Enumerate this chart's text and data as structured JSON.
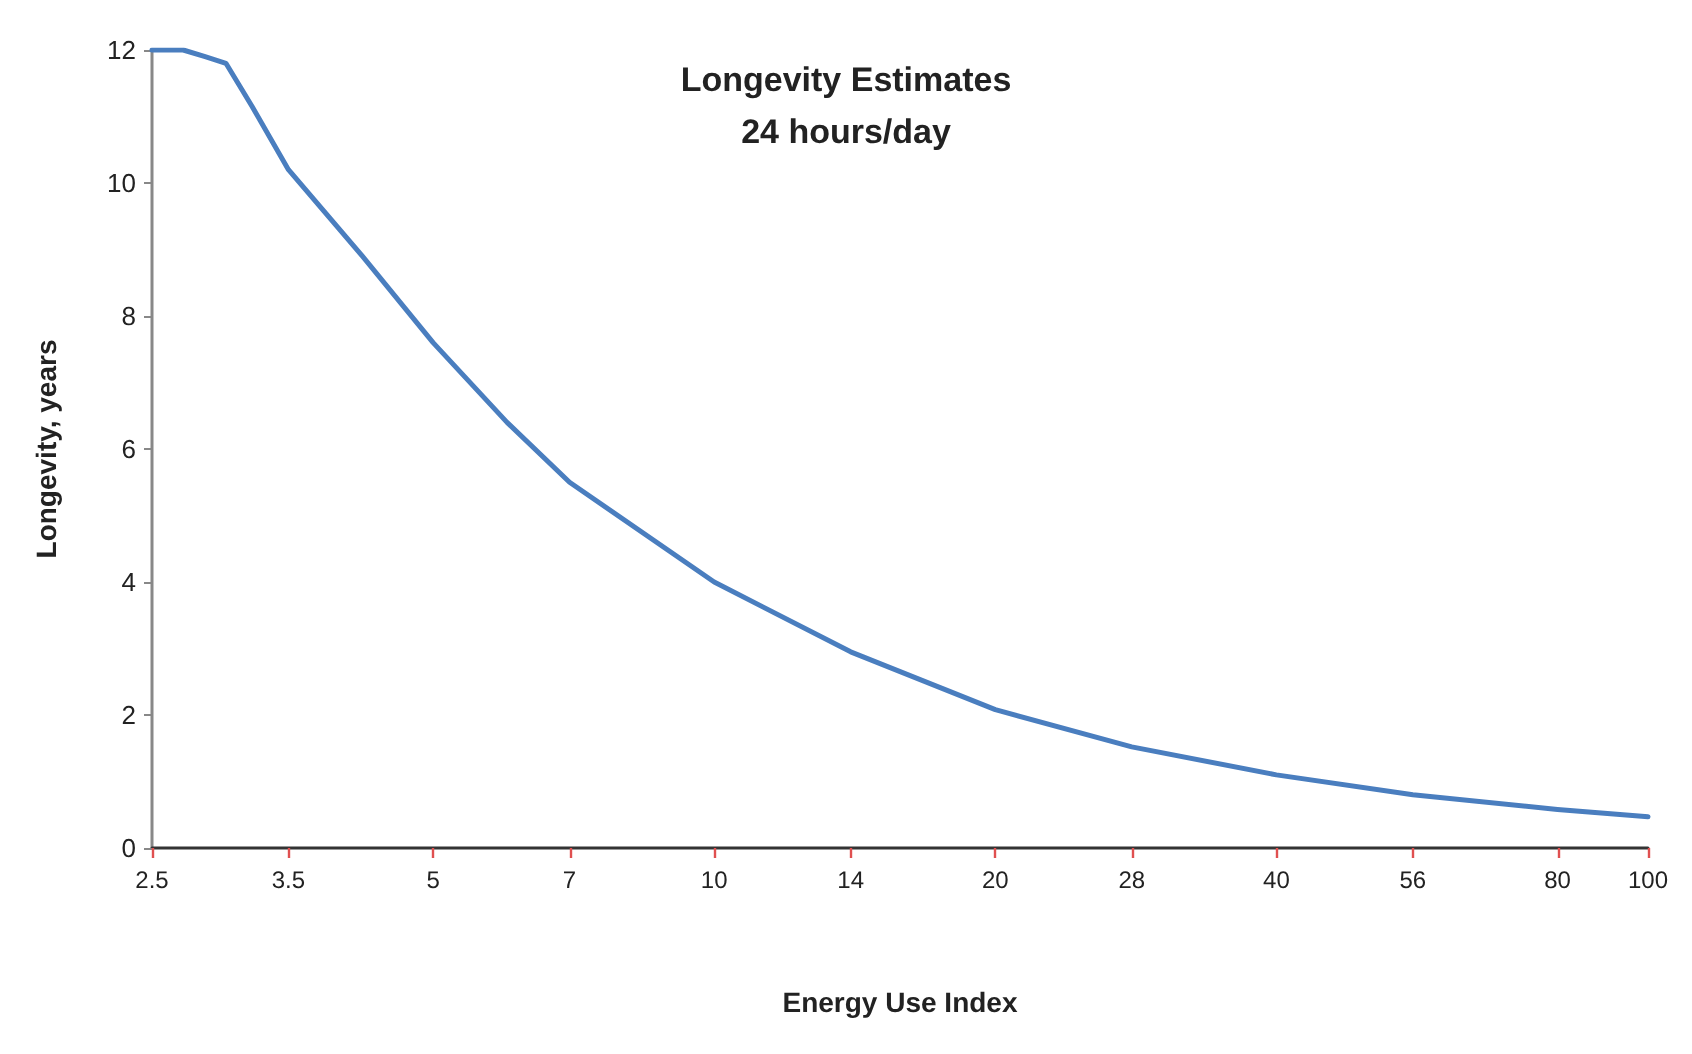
{
  "chart_data": {
    "type": "line",
    "title": "Longevity Estimates\n24 hours/day",
    "xlabel": "Energy Use Index",
    "ylabel": "Longevity, years",
    "log": "x",
    "x": [
      2.5,
      2.7,
      2.85,
      3.0,
      3.2,
      3.5,
      4.2,
      5,
      6,
      7,
      10,
      14,
      20,
      28,
      40,
      56,
      80,
      100
    ],
    "series": [
      {
        "color": "#4a7ebf",
        "values": [
          12,
          12,
          11.9,
          11.8,
          11.15,
          10.2,
          8.9,
          7.6,
          6.4,
          5.5,
          4.0,
          2.95,
          2.08,
          1.52,
          1.1,
          0.8,
          0.58,
          0.47
        ]
      }
    ],
    "xlim": [
      2.5,
      100
    ],
    "xticks": [
      2.5,
      3.5,
      5,
      7,
      10,
      14,
      20,
      28,
      40,
      56,
      80,
      100
    ],
    "ylim": [
      0,
      12
    ],
    "yticks": [
      0,
      2,
      4,
      6,
      8,
      10,
      12
    ],
    "grid": false,
    "marker": "none",
    "line_style": "solid"
  }
}
